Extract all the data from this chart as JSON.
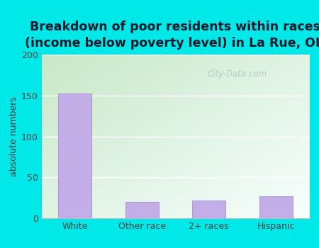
{
  "categories": [
    "White",
    "Other race",
    "2+ races",
    "Hispanic"
  ],
  "values": [
    152,
    20,
    22,
    27
  ],
  "bar_color": "#c4aee8",
  "bar_edge_color": "#b09ad8",
  "title_line1": "Breakdown of poor residents within races",
  "title_line2": "(income below poverty level) in La Rue, OH",
  "ylabel": "absolute numbers",
  "ylim": [
    0,
    200
  ],
  "yticks": [
    0,
    50,
    100,
    150,
    200
  ],
  "outer_bg": "#00e8e8",
  "plot_bg_top_left": "#c8e8c8",
  "plot_bg_bottom_right": "#f8ffff",
  "watermark": "City-Data.com",
  "title_fontsize": 12.5,
  "ylabel_fontsize": 9,
  "tick_fontsize": 9
}
